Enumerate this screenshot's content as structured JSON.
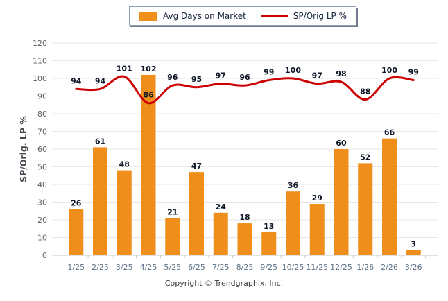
{
  "legend": {
    "bar_label": "Avg Days on Market",
    "line_label": "SP/Orig LP %"
  },
  "footer": {
    "copyright": "Copyright © Trendgraphix, Inc."
  },
  "chart_data": {
    "type": "bar+line combo",
    "categories": [
      "1/25",
      "2/25",
      "3/25",
      "4/25",
      "5/25",
      "6/25",
      "7/25",
      "8/25",
      "9/25",
      "10/25",
      "11/25",
      "12/25",
      "1/26",
      "2/26",
      "3/26"
    ],
    "series": [
      {
        "name": "Avg Days on Market",
        "type": "bar",
        "color": "#EF8E1B",
        "values": [
          26,
          61,
          48,
          102,
          21,
          47,
          24,
          18,
          13,
          36,
          29,
          60,
          52,
          66,
          3
        ]
      },
      {
        "name": "SP/Orig LP %",
        "type": "line",
        "color": "#CC0000",
        "values": [
          94,
          94,
          101,
          86,
          96,
          95,
          97,
          96,
          99,
          100,
          97,
          98,
          88,
          100,
          99
        ]
      }
    ],
    "title": "",
    "xlabel": "",
    "ylabel": "SP/Orig. LP %",
    "ylim": [
      0,
      120
    ],
    "ytick_step": 10,
    "grid": true,
    "data_labels": true,
    "legend_position": "top-center"
  },
  "colors": {
    "bar": "#EF8E1B",
    "line": "#CC0000",
    "grid": "#e7e7e7",
    "axis": "#c6c6c6",
    "data_label": "#0d1526",
    "y_tick_label": "#625f58",
    "x_tick_label": "#5b7186",
    "y_axis_title": "#45484f"
  }
}
